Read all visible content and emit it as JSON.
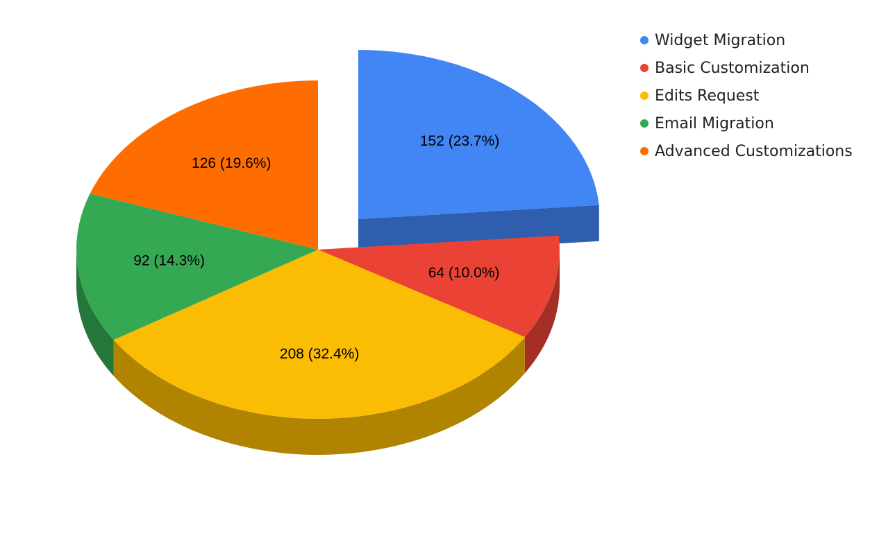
{
  "chart_data": {
    "type": "pie",
    "style": "3d-exploded",
    "legend_position": "right",
    "slices": [
      {
        "name": "Widget Migration",
        "value": 152,
        "label": "152 (23.7%)",
        "color": "#4285F4",
        "side_color": "#2E5EAD",
        "exploded": true
      },
      {
        "name": "Basic Customization",
        "value": 64,
        "label": "64 (10.0%)",
        "color": "#EA4335",
        "side_color": "#A52F26",
        "exploded": false
      },
      {
        "name": "Edits Request",
        "value": 208,
        "label": "208 (32.4%)",
        "color": "#FBBC04",
        "side_color": "#B08400",
        "exploded": false
      },
      {
        "name": "Email Migration",
        "value": 92,
        "label": "92 (14.3%)",
        "color": "#34A853",
        "side_color": "#24763A",
        "exploded": false
      },
      {
        "name": "Advanced Customizations",
        "value": 126,
        "label": "126 (19.6%)",
        "color": "#FF6D01",
        "side_color": "#B34D01",
        "exploded": false
      }
    ]
  }
}
